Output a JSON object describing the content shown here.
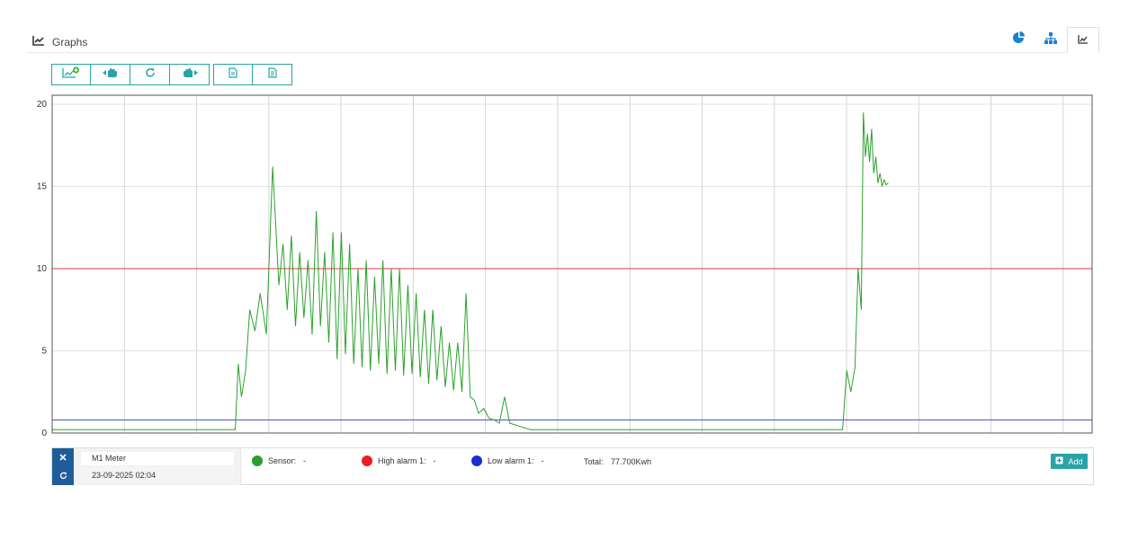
{
  "header": {
    "title": "Graphs",
    "icons": [
      "line-chart-icon",
      "pie-chart-icon",
      "hierarchy-icon",
      "line-chart-icon"
    ]
  },
  "toolbar": {
    "buttons": [
      "add-graph-icon",
      "pan-left-icon",
      "refresh-icon",
      "pan-right-icon",
      "document-icon",
      "report-icon"
    ]
  },
  "colors": {
    "sensor": "#2ca02c",
    "high_alarm": "#e53935",
    "low_alarm": "#3f51b5",
    "accent": "#2aa3a6",
    "side": "#1f5d99"
  },
  "chart_data": {
    "type": "line",
    "ylim": [
      0,
      20
    ],
    "yticks": [
      0,
      5,
      10,
      15,
      20
    ],
    "grid": true,
    "thresholds": [
      {
        "name": "High alarm 1",
        "value": 10
      },
      {
        "name": "Low alarm 1",
        "value": 0.8
      }
    ],
    "series": [
      {
        "name": "Sensor",
        "x": [
          0,
          8,
          15,
          17.6,
          17.9,
          18.2,
          18.6,
          19.0,
          19.5,
          20.0,
          20.6,
          21.2,
          21.8,
          22.2,
          22.6,
          23.0,
          23.4,
          23.8,
          24.2,
          24.6,
          25.0,
          25.4,
          25.8,
          26.2,
          26.6,
          27.0,
          27.4,
          27.8,
          28.2,
          28.6,
          29.0,
          29.4,
          29.8,
          30.2,
          30.6,
          31.0,
          31.4,
          31.8,
          32.2,
          32.6,
          33.0,
          33.4,
          33.8,
          34.2,
          34.6,
          35.0,
          35.4,
          35.8,
          36.2,
          36.6,
          37.0,
          37.4,
          37.8,
          38.2,
          38.6,
          39.0,
          39.4,
          39.8,
          40.2,
          40.6,
          41.0,
          41.5,
          42.0,
          42.5,
          43.0,
          43.5,
          44.0,
          44.5,
          45.0,
          45.5,
          46.0,
          46.4,
          46.8,
          47.2,
          47.8,
          48.5,
          49.5,
          50,
          51,
          55,
          60,
          65,
          70,
          76,
          76.4,
          76.8,
          77.2,
          77.5,
          77.8,
          78.0,
          78.2,
          78.4,
          78.6,
          78.8,
          79.0,
          79.2,
          79.4,
          79.6,
          79.8,
          80.0,
          80.2,
          80.4
        ],
        "values": [
          0.2,
          0.2,
          0.2,
          0.2,
          4.2,
          2.2,
          3.8,
          7.5,
          6.2,
          8.5,
          6.0,
          16.2,
          9.0,
          11.5,
          7.5,
          12.0,
          6.5,
          11.0,
          7.0,
          10.5,
          6.0,
          13.5,
          6.5,
          11.0,
          5.5,
          12.2,
          4.5,
          12.2,
          4.8,
          11.5,
          4.2,
          10.0,
          4.0,
          10.5,
          3.8,
          9.5,
          4.2,
          10.5,
          3.6,
          10.0,
          3.8,
          10.0,
          3.5,
          9.0,
          3.6,
          8.5,
          3.4,
          7.5,
          3.0,
          7.5,
          3.2,
          6.5,
          2.8,
          5.5,
          2.6,
          5.5,
          2.5,
          8.5,
          2.2,
          2.0,
          1.2,
          1.5,
          0.9,
          0.8,
          0.6,
          2.2,
          0.6,
          0.5,
          0.4,
          0.3,
          0.2,
          0.2,
          0.2,
          0.2,
          0.2,
          0.2,
          0.2,
          0.2,
          0.2,
          0.2,
          0.2,
          0.2,
          0.2,
          0.2,
          3.8,
          2.5,
          4.0,
          10.0,
          7.5,
          19.5,
          16.8,
          18.2,
          16.5,
          18.5,
          15.8,
          16.8,
          15.2,
          15.8,
          15.0,
          15.4,
          15.1,
          15.2
        ]
      }
    ]
  },
  "legend": {
    "meter_name": "M1 Meter",
    "meter_date": "23-09-2025 02:04",
    "items": [
      {
        "label": "Sensor:",
        "value": "-"
      },
      {
        "label": "High alarm 1:",
        "value": "-"
      },
      {
        "label": "Low alarm 1:",
        "value": "-"
      }
    ],
    "total_label": "Total:",
    "total_value": "77.700Kwh",
    "add_label": "Add"
  }
}
